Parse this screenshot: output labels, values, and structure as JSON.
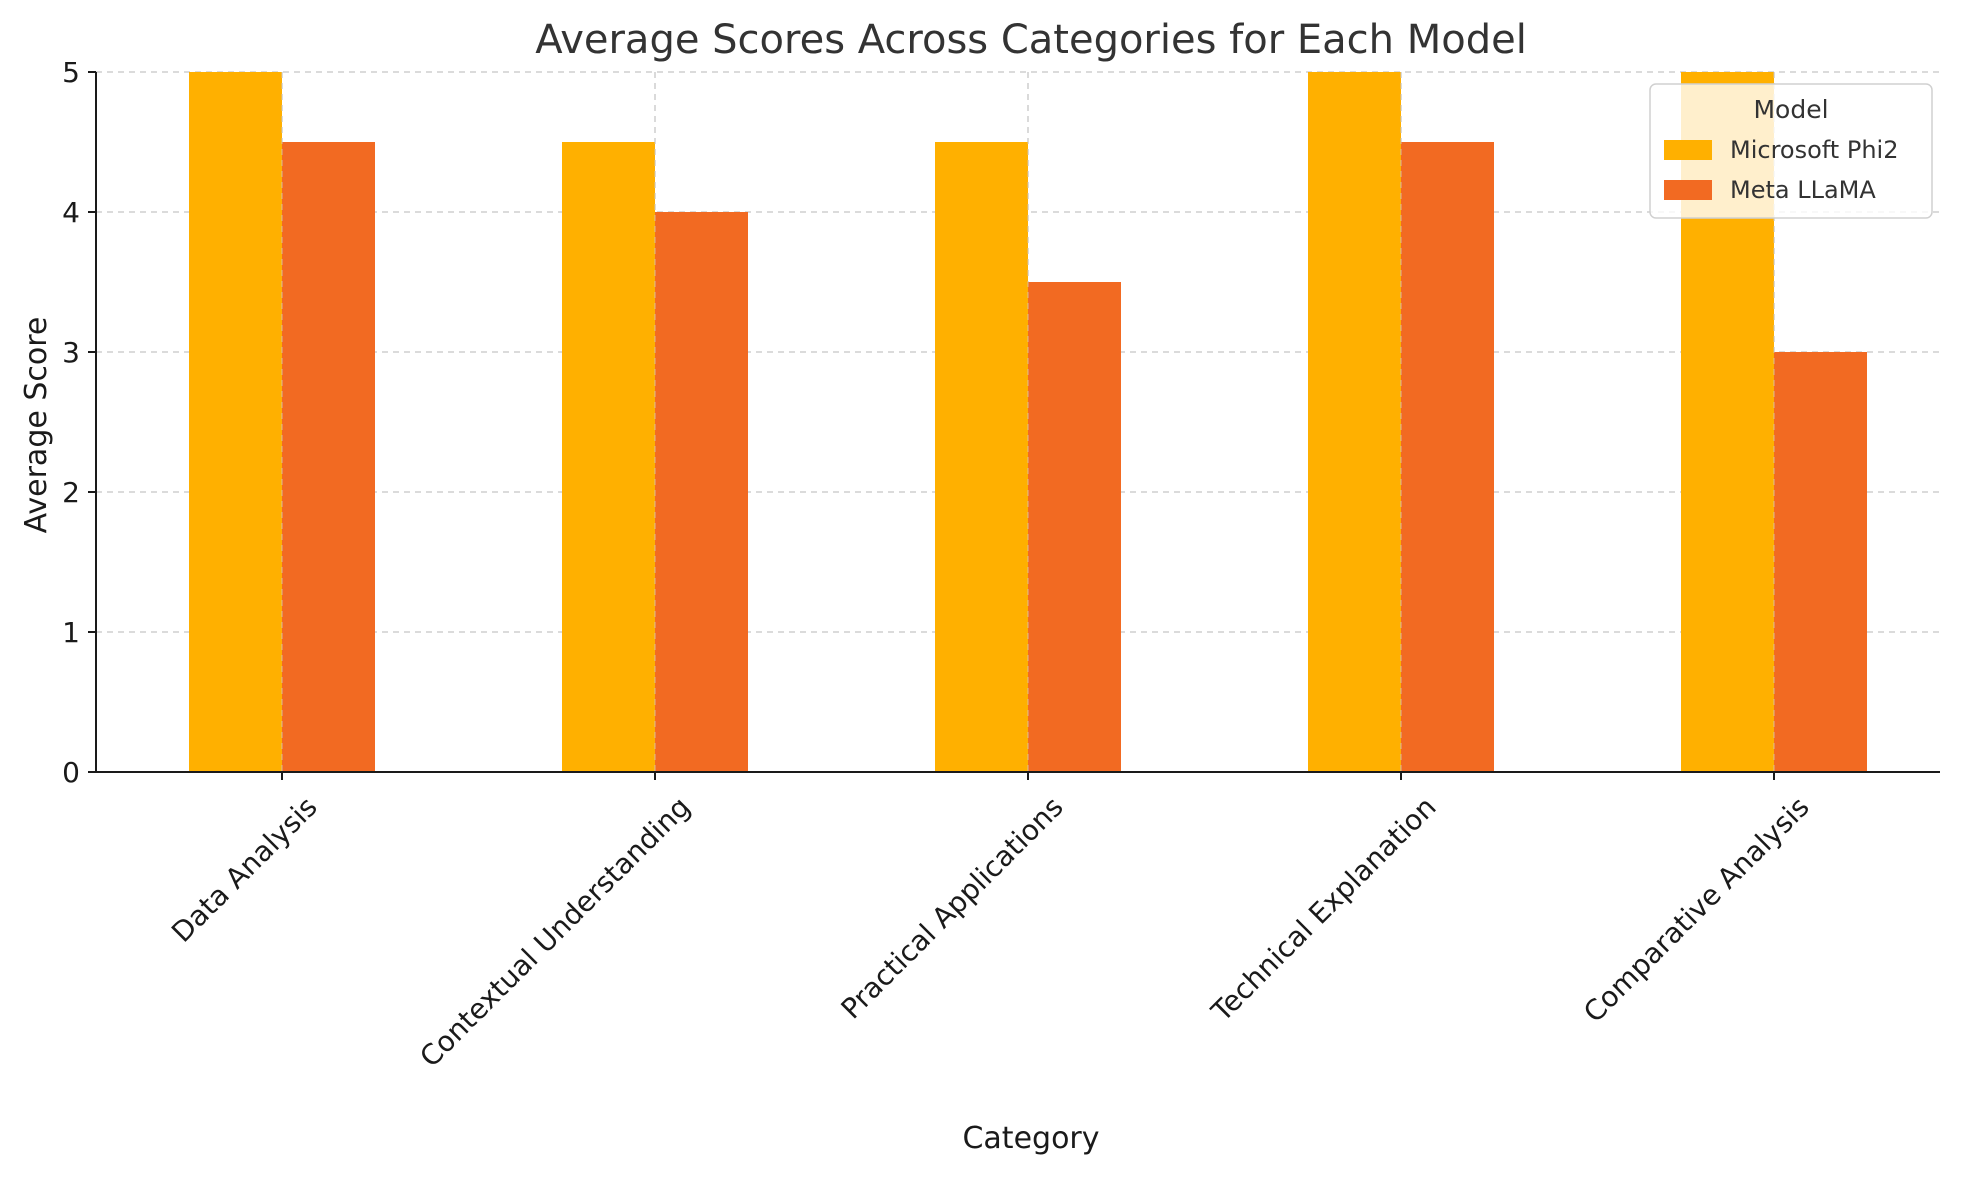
{
  "chart_data": {
    "type": "bar",
    "title": "Average Scores Across Categories for Each Model",
    "xlabel": "Category",
    "ylabel": "Average Score",
    "categories": [
      "Data Analysis",
      "Contextual Understanding",
      "Practical Applications",
      "Technical Explanation",
      "Comparative Analysis"
    ],
    "series": [
      {
        "name": "Microsoft Phi2",
        "values": [
          5,
          4.5,
          4.5,
          5,
          5
        ],
        "color": "#FFB000"
      },
      {
        "name": "Meta LLaMA",
        "values": [
          4.5,
          4,
          3.5,
          4.5,
          3
        ],
        "color": "#F26A22"
      }
    ],
    "ylim": [
      0,
      5
    ],
    "yticks": [
      0,
      1,
      2,
      3,
      4,
      5
    ],
    "grid": true,
    "legend": {
      "title": "Model",
      "position": "top-right"
    }
  }
}
